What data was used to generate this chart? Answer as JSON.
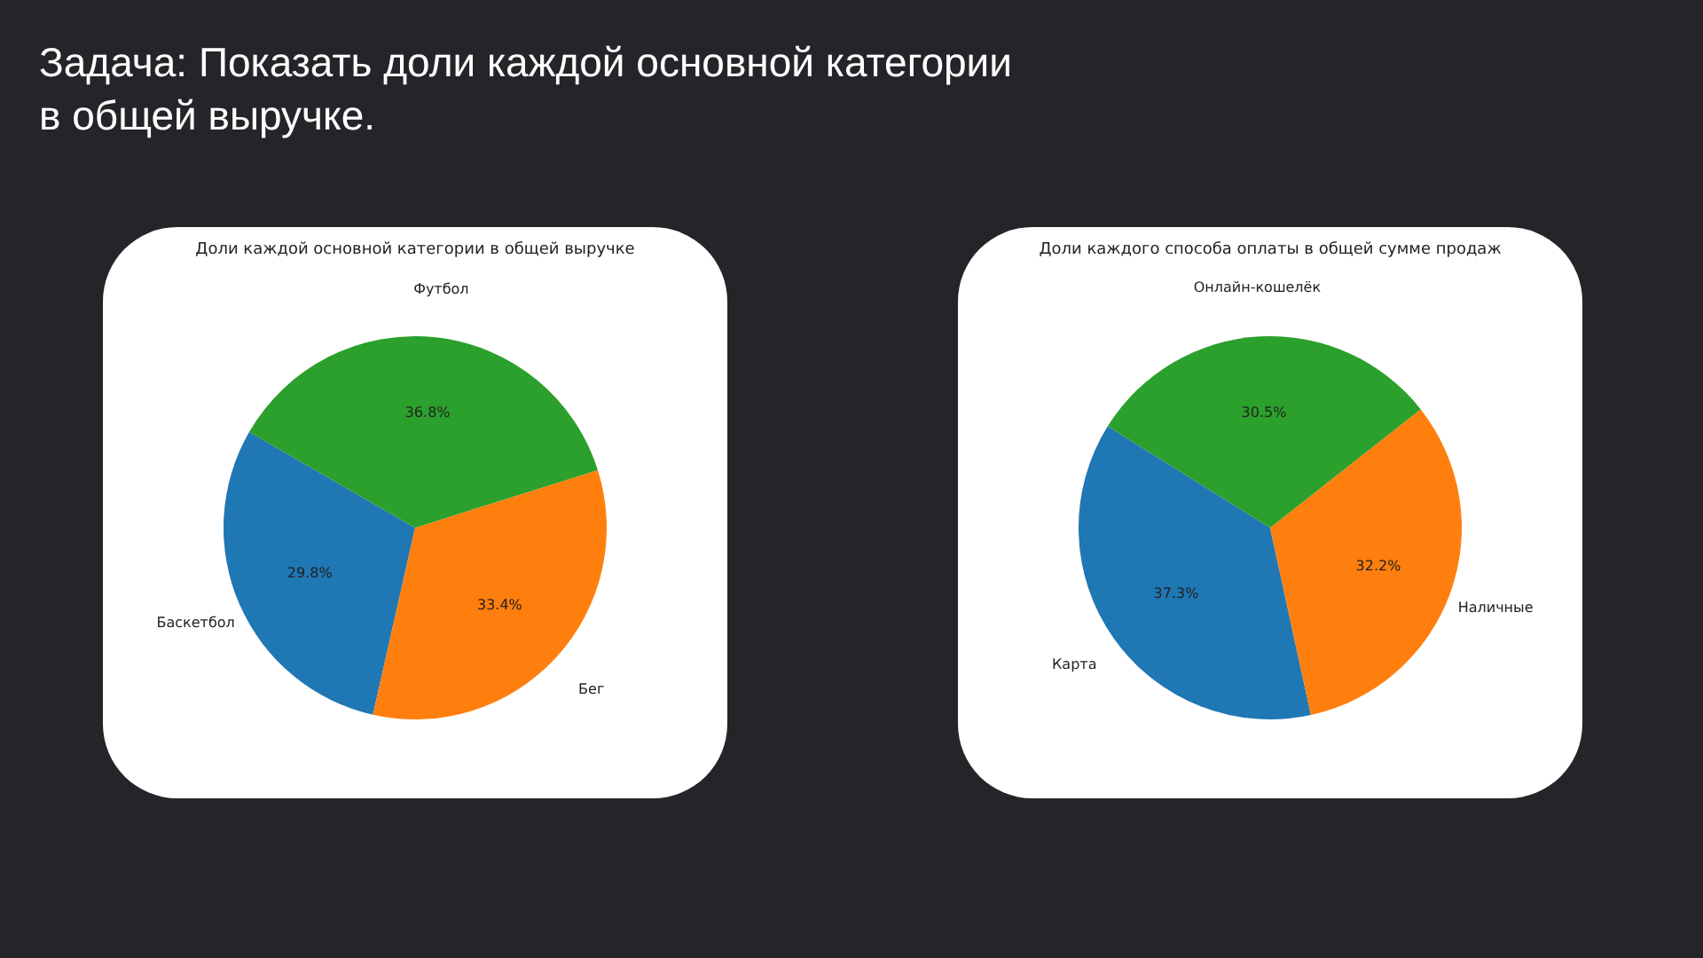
{
  "chart_data": [
    {
      "type": "pie",
      "title": "Доли каждой основной категории в общей выручке",
      "annotations": [
        "Задача: Показать доли каждой основной категории в общей выручке."
      ],
      "categories": [
        "Баскетбол",
        "Бег",
        "Футбол"
      ],
      "values": [
        29.8,
        33.4,
        36.8
      ],
      "colors": [
        "#1f77b4",
        "#ff7f0e",
        "#2ca02c"
      ],
      "value_labels": [
        "29.8%",
        "33.4%",
        "36.8%"
      ]
    },
    {
      "type": "pie",
      "title": "Доли каждого способа оплаты в общей сумме продаж",
      "categories": [
        "Карта",
        "Наличные",
        "Онлайн-кошелёк"
      ],
      "values": [
        37.3,
        32.2,
        30.5
      ],
      "colors": [
        "#1f77b4",
        "#ff7f0e",
        "#2ca02c"
      ],
      "value_labels": [
        "37.3%",
        "32.2%",
        "30.5%"
      ]
    }
  ]
}
